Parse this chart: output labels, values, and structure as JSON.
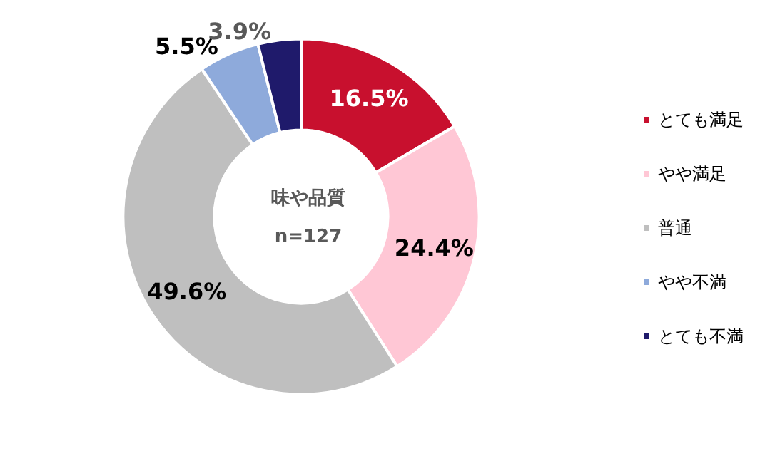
{
  "chart_data": {
    "type": "donut",
    "title": "味や品質",
    "subtitle": "n=127",
    "categories": [
      "とても満足",
      "やや満足",
      "普通",
      "やや不満",
      "とても不満"
    ],
    "values": [
      16.5,
      24.4,
      49.6,
      5.5,
      3.9
    ],
    "colors": [
      "#c8102e",
      "#ffc7d5",
      "#bfbfbf",
      "#8eaadb",
      "#1f1a6b"
    ],
    "value_labels": [
      "16.5%",
      "24.4%",
      "49.6%",
      "5.5%",
      "3.9%"
    ],
    "legend": "right"
  }
}
